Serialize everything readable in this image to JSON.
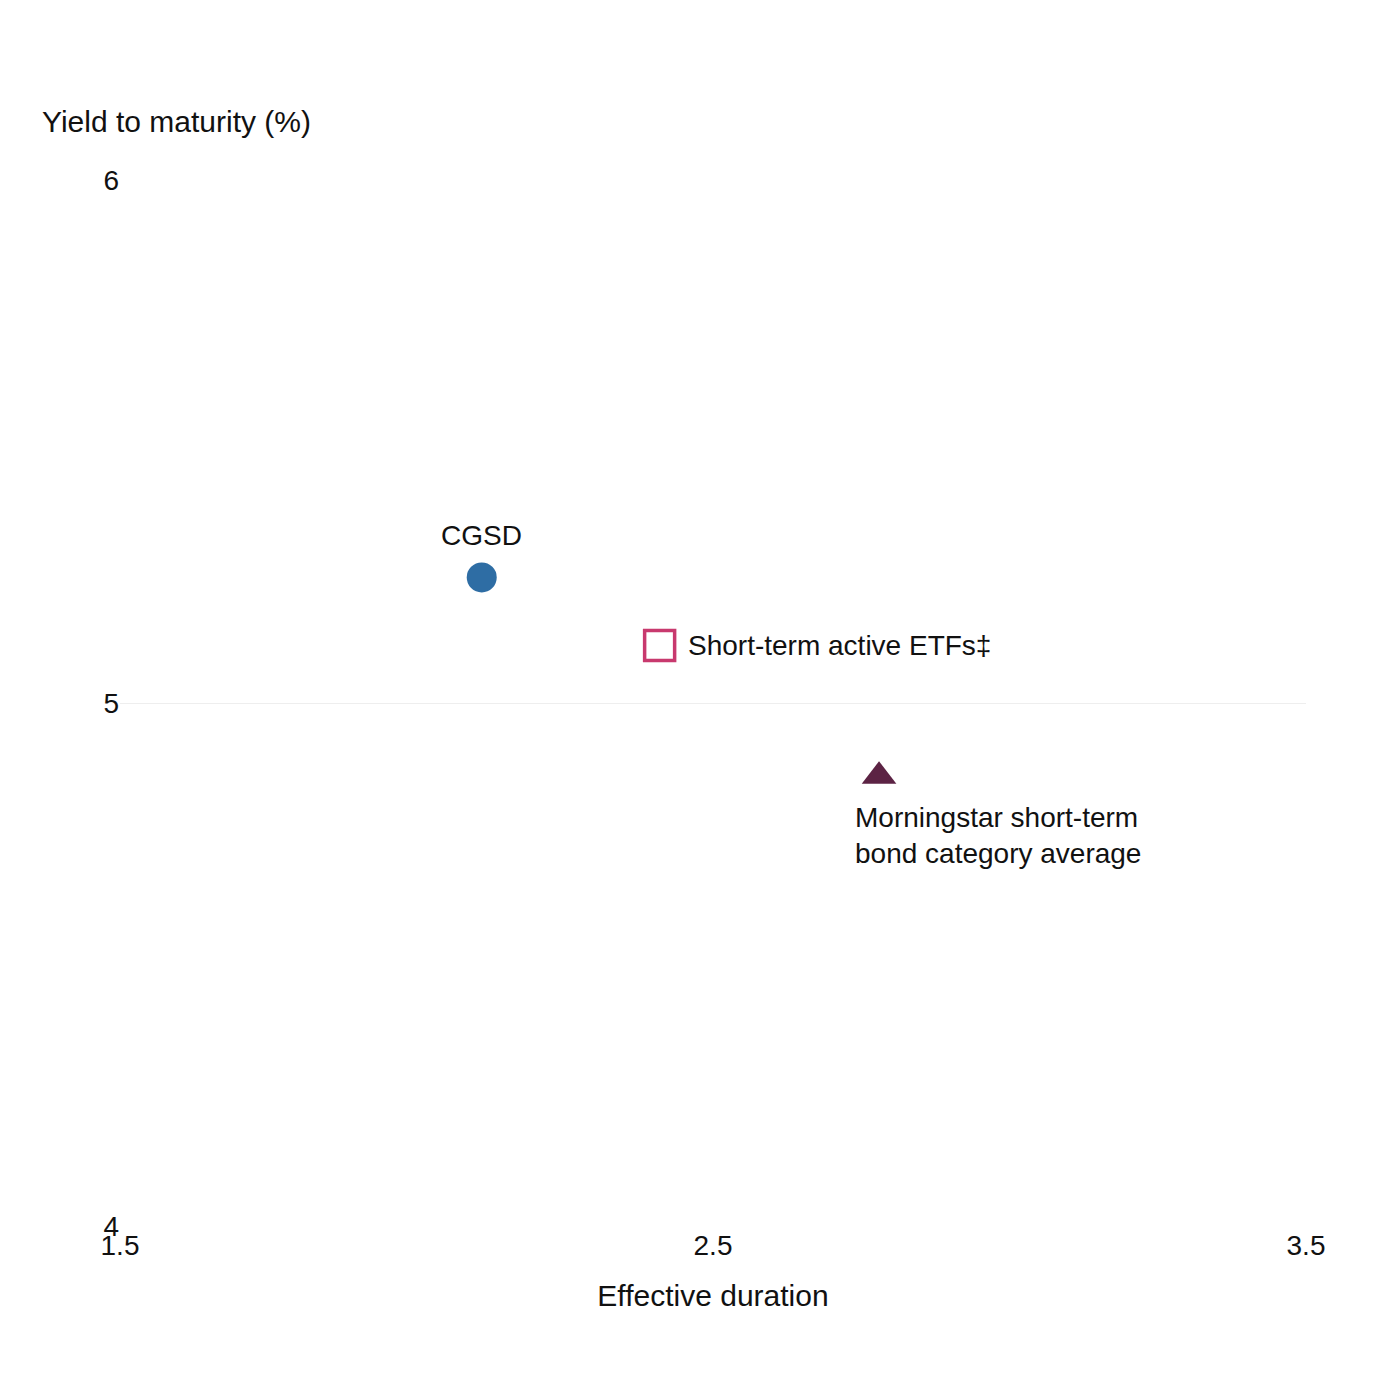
{
  "chart_data": {
    "type": "scatter",
    "xlabel": "Effective duration",
    "ylabel": "Yield to maturity (%)",
    "xlim": [
      1.5,
      3.5
    ],
    "ylim": [
      4.0,
      6.0
    ],
    "xticks": [
      1.5,
      2.5,
      3.5
    ],
    "yticks": [
      4,
      5,
      6
    ],
    "grid": "y",
    "series": [
      {
        "color": "#2e6da4",
        "marker": "circle",
        "x": [
          2.11
        ],
        "values": [
          5.24
        ],
        "annotation": "CGSD"
      },
      {
        "color": "#c8396e",
        "marker": "square-open",
        "x": [
          2.41
        ],
        "values": [
          5.11
        ],
        "annotation": "Short-term active ETFs‡"
      },
      {
        "color": "#5c2344",
        "marker": "triangle-up",
        "x": [
          2.78
        ],
        "values": [
          4.86
        ],
        "annotation": "Morningstar short-term\nbond category average"
      }
    ]
  }
}
